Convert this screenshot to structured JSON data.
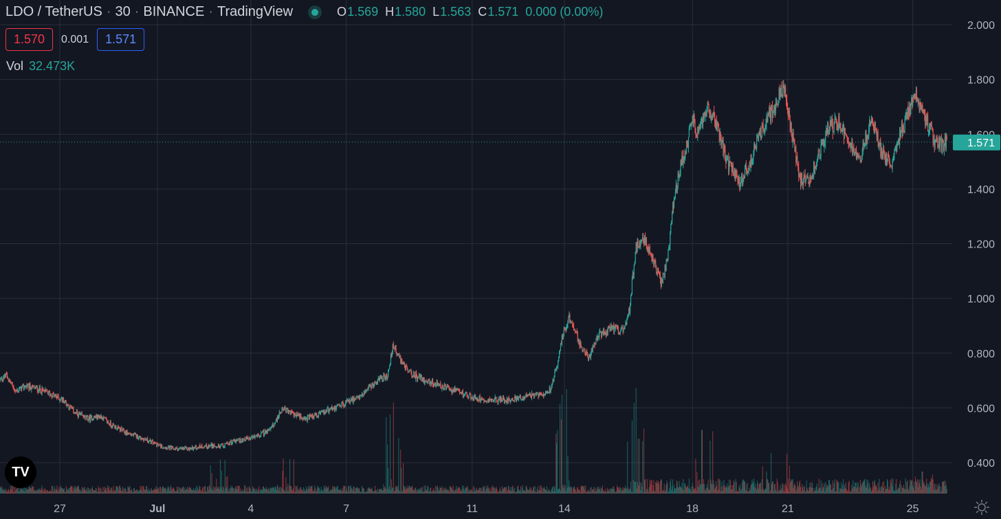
{
  "header": {
    "symbol": "LDO / TetherUS",
    "interval": "30",
    "exchange": "BINANCE",
    "provider": "TradingView",
    "ohlc": {
      "o": "1.569",
      "h": "1.580",
      "l": "1.563",
      "c": "1.571",
      "change": "0.000 (0.00%)"
    },
    "labels": {
      "o": "O",
      "h": "H",
      "l": "L",
      "c": "C"
    }
  },
  "trade": {
    "sell": "1.570",
    "spread": "0.001",
    "buy": "1.571"
  },
  "volume": {
    "label": "Vol",
    "value": "32.473K"
  },
  "logo_text": "TV",
  "icons": {
    "status": "live-dot-icon",
    "settings": "gear-icon",
    "logo": "tradingview-logo-icon"
  },
  "colors": {
    "up": "#26a69a",
    "down": "#ef5350",
    "background": "#131722",
    "grid": "#2a2e39"
  },
  "chart_data": {
    "type": "candlestick",
    "title": "LDO / TetherUS · 30 · BINANCE",
    "ylim": [
      0.3,
      2.05
    ],
    "y_ticks": [
      "2.000",
      "1.800",
      "1.600",
      "1.400",
      "1.200",
      "1.000",
      "0.800",
      "0.600",
      "0.400"
    ],
    "y_tick_values": [
      2.0,
      1.8,
      1.6,
      1.4,
      1.2,
      1.0,
      0.8,
      0.6,
      0.4
    ],
    "x_ticks": [
      "27",
      "Jul",
      "4",
      "7",
      "11",
      "14",
      "18",
      "21",
      "25"
    ],
    "x_tick_days": [
      1.9,
      5.0,
      7.97,
      11.0,
      15.0,
      17.93,
      22.0,
      25.03,
      29.0
    ],
    "x_range_days": [
      0,
      30.1
    ],
    "last_price": "1.571",
    "last_price_value": 1.571,
    "price_path": [
      [
        0.0,
        0.7
      ],
      [
        0.2,
        0.72
      ],
      [
        0.5,
        0.66
      ],
      [
        0.8,
        0.68
      ],
      [
        1.2,
        0.67
      ],
      [
        1.6,
        0.65
      ],
      [
        2.0,
        0.63
      ],
      [
        2.4,
        0.58
      ],
      [
        2.8,
        0.56
      ],
      [
        3.2,
        0.57
      ],
      [
        3.5,
        0.54
      ],
      [
        4.0,
        0.51
      ],
      [
        4.5,
        0.49
      ],
      [
        4.9,
        0.47
      ],
      [
        5.1,
        0.46
      ],
      [
        5.5,
        0.45
      ],
      [
        6.0,
        0.45
      ],
      [
        6.4,
        0.46
      ],
      [
        7.0,
        0.46
      ],
      [
        7.5,
        0.48
      ],
      [
        8.0,
        0.49
      ],
      [
        8.6,
        0.52
      ],
      [
        9.0,
        0.6
      ],
      [
        9.3,
        0.58
      ],
      [
        9.7,
        0.56
      ],
      [
        10.2,
        0.58
      ],
      [
        10.8,
        0.61
      ],
      [
        11.4,
        0.64
      ],
      [
        11.9,
        0.69
      ],
      [
        12.3,
        0.72
      ],
      [
        12.5,
        0.83
      ],
      [
        12.7,
        0.78
      ],
      [
        13.0,
        0.73
      ],
      [
        13.5,
        0.7
      ],
      [
        14.0,
        0.68
      ],
      [
        14.5,
        0.66
      ],
      [
        15.0,
        0.64
      ],
      [
        15.5,
        0.63
      ],
      [
        16.2,
        0.63
      ],
      [
        16.7,
        0.64
      ],
      [
        17.2,
        0.65
      ],
      [
        17.5,
        0.67
      ],
      [
        17.7,
        0.76
      ],
      [
        17.9,
        0.88
      ],
      [
        18.1,
        0.93
      ],
      [
        18.4,
        0.84
      ],
      [
        18.7,
        0.78
      ],
      [
        19.0,
        0.86
      ],
      [
        19.4,
        0.89
      ],
      [
        19.8,
        0.88
      ],
      [
        20.0,
        0.96
      ],
      [
        20.2,
        1.19
      ],
      [
        20.5,
        1.21
      ],
      [
        20.8,
        1.12
      ],
      [
        21.0,
        1.06
      ],
      [
        21.2,
        1.13
      ],
      [
        21.4,
        1.35
      ],
      [
        21.6,
        1.47
      ],
      [
        21.8,
        1.55
      ],
      [
        22.0,
        1.65
      ],
      [
        22.2,
        1.6
      ],
      [
        22.5,
        1.7
      ],
      [
        22.8,
        1.62
      ],
      [
        23.1,
        1.5
      ],
      [
        23.5,
        1.42
      ],
      [
        23.8,
        1.49
      ],
      [
        24.2,
        1.62
      ],
      [
        24.6,
        1.7
      ],
      [
        24.9,
        1.77
      ],
      [
        25.1,
        1.64
      ],
      [
        25.4,
        1.44
      ],
      [
        25.7,
        1.43
      ],
      [
        26.0,
        1.52
      ],
      [
        26.3,
        1.63
      ],
      [
        26.7,
        1.64
      ],
      [
        27.0,
        1.57
      ],
      [
        27.3,
        1.5
      ],
      [
        27.7,
        1.66
      ],
      [
        28.0,
        1.53
      ],
      [
        28.3,
        1.49
      ],
      [
        28.6,
        1.6
      ],
      [
        28.9,
        1.69
      ],
      [
        29.1,
        1.74
      ],
      [
        29.4,
        1.66
      ],
      [
        29.7,
        1.57
      ],
      [
        30.0,
        1.56
      ],
      [
        30.1,
        1.571
      ]
    ],
    "volume_spikes": [
      [
        7.0,
        0.31
      ],
      [
        9.0,
        0.32
      ],
      [
        12.5,
        0.83
      ],
      [
        17.85,
        0.9
      ],
      [
        18.0,
        0.95
      ],
      [
        20.2,
        0.96
      ],
      [
        22.3,
        0.58
      ],
      [
        24.5,
        0.37
      ],
      [
        25.0,
        0.36
      ],
      [
        29.3,
        0.2
      ]
    ],
    "volume_label": "Vol"
  }
}
